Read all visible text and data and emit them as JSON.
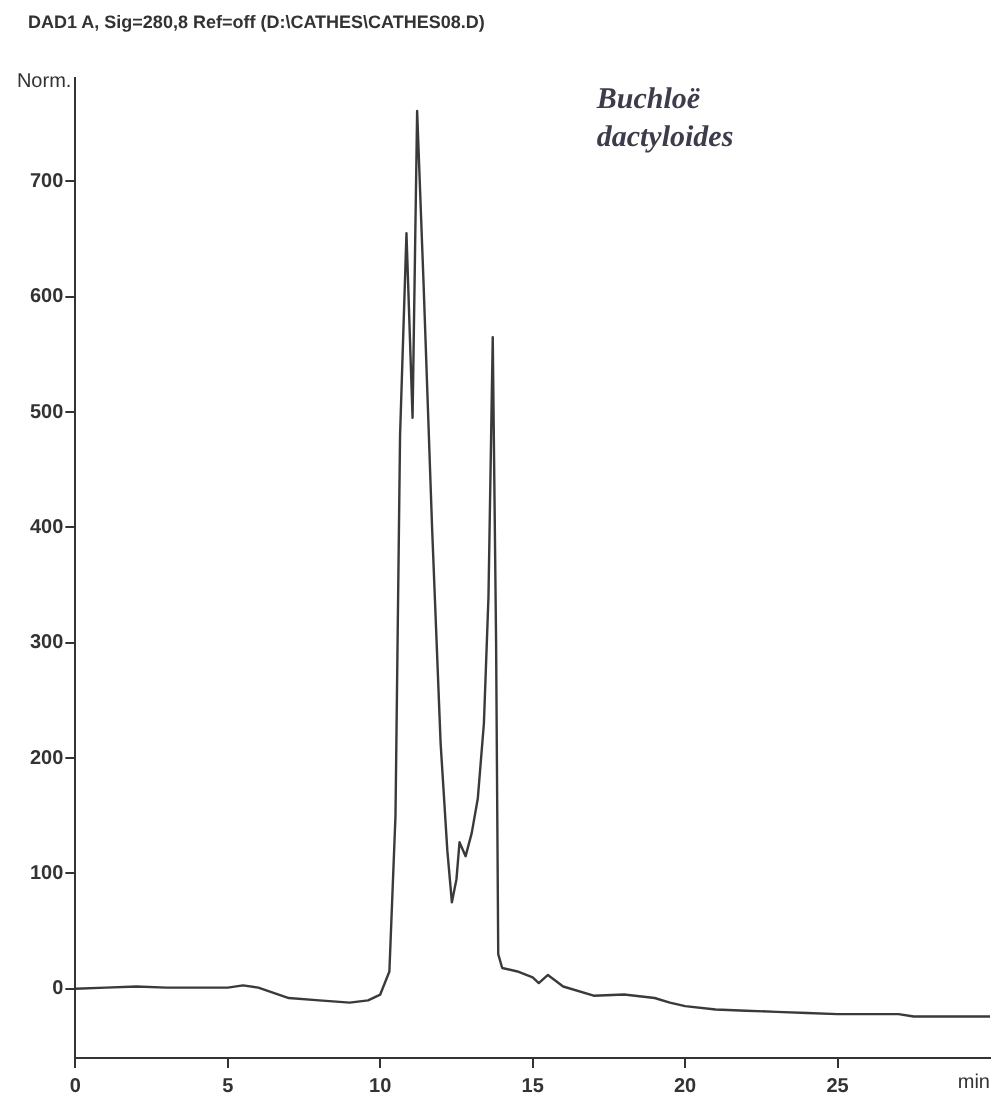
{
  "chart_data": {
    "type": "line",
    "title": "DAD1 A, Sig=280,8 Ref=off (D:\\CATHES\\CATHES08.D)",
    "xlabel": "min",
    "ylabel": "Norm.",
    "annotations": [
      "Buchloë dactyloides"
    ],
    "x": [
      0,
      1,
      2,
      3,
      4,
      5,
      5.5,
      6,
      7,
      8,
      9,
      9.6,
      10,
      10.3,
      10.5,
      10.65,
      10.86,
      11.06,
      11.21,
      11.42,
      11.7,
      11.98,
      12.2,
      12.35,
      12.5,
      12.6,
      12.8,
      13.0,
      13.2,
      13.4,
      13.55,
      13.69,
      13.8,
      13.87,
      14.0,
      14.5,
      15.0,
      15.2,
      15.5,
      16,
      17,
      18,
      19,
      19.5,
      20,
      21,
      22,
      23,
      24,
      25,
      26,
      27,
      27.5,
      28,
      29,
      30
    ],
    "series": [
      {
        "color": "#3a3a3a",
        "values": [
          0,
          1,
          2,
          1,
          1,
          1,
          3,
          1,
          -8,
          -10,
          -12,
          -10,
          -5,
          15,
          150,
          480,
          655,
          495,
          761,
          612,
          400,
          213,
          120,
          75,
          95,
          127,
          115,
          135,
          165,
          230,
          340,
          565,
          300,
          30,
          18,
          15,
          10,
          5,
          12,
          2,
          -6,
          -5,
          -8,
          -12,
          -15,
          -18,
          -19,
          -20,
          -21,
          -22,
          -22,
          -22,
          -24,
          -24,
          -24,
          -24
        ]
      }
    ],
    "xlim": [
      0,
      30
    ],
    "ylim": [
      -60,
      790
    ],
    "xticks": [
      0,
      5,
      10,
      15,
      20,
      25
    ],
    "yticks": [
      0,
      100,
      200,
      300,
      400,
      500,
      600,
      700
    ],
    "grid": false,
    "marker": "none",
    "line_style": "solid"
  }
}
